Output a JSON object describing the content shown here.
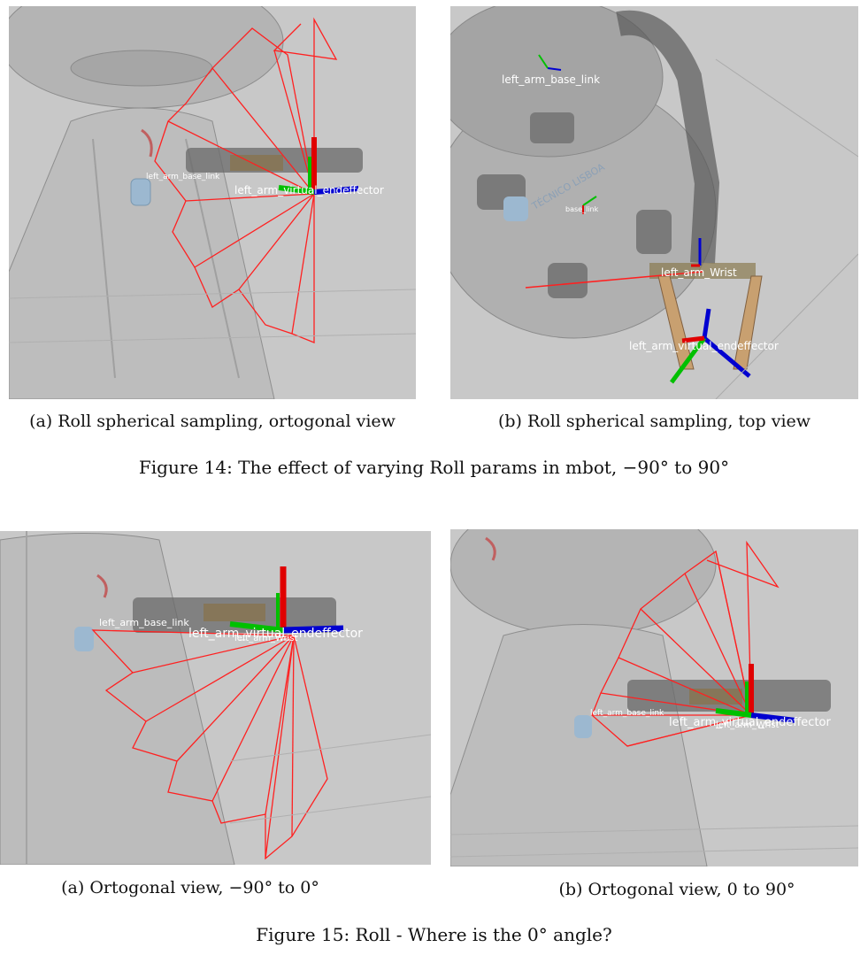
{
  "figure14": {
    "panel_a": {
      "caption": "(a) Roll spherical sampling, ortogonal view",
      "labels": {
        "base": "left_arm_base_link",
        "effector": "left_arm_virtual_endeffector"
      }
    },
    "panel_b": {
      "caption": "(b) Roll spherical sampling, top view",
      "labels": {
        "base": "left_arm_base_link",
        "baselink": "base_link",
        "wrist": "left_arm_Wrist",
        "effector": "left_arm_virtual_endeffector"
      },
      "logo_text": "TÉCNICO LISBOA"
    },
    "caption": "Figure 14: The effect of varying Roll params in mbot, −90° to 90°"
  },
  "figure15": {
    "panel_a": {
      "caption": "(a) Ortogonal view, −90° to 0°",
      "labels": {
        "base": "left_arm_base_link",
        "effector": "left_arm_virtual_endeffector",
        "wrist": "left_arm_Wrist"
      }
    },
    "panel_b": {
      "caption": "(b) Ortogonal view, 0 to 90°",
      "labels": {
        "base": "left_arm_base_link",
        "effector": "left_arm_virtual_endeffector",
        "wrist": "left_arm_Wrist"
      }
    },
    "caption": "Figure 15: Roll - Where is the 0° angle?"
  },
  "colors": {
    "background": "#c9c9c9",
    "trajectory": "#ff2020",
    "axis_x": "#e00000",
    "axis_y": "#00c000",
    "axis_z": "#0000d0",
    "label": "#ffffff"
  }
}
